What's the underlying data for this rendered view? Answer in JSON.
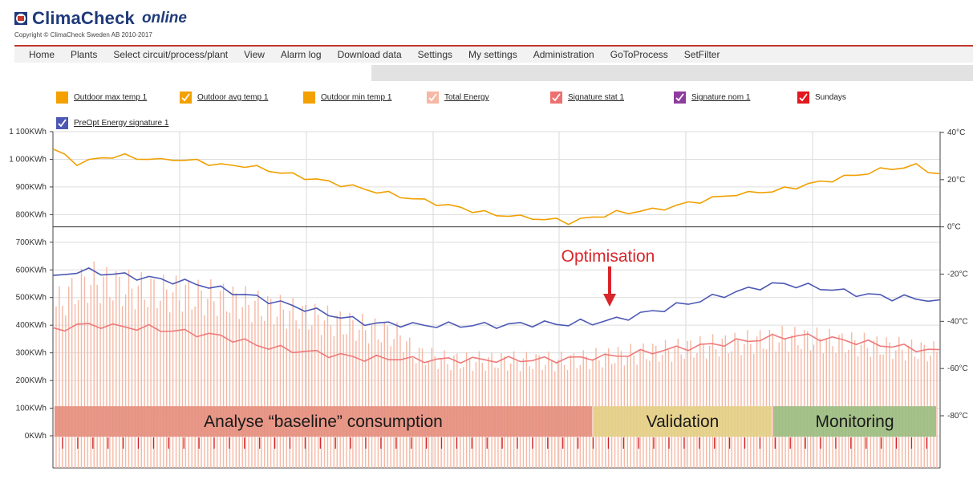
{
  "header": {
    "logo_name": "ClimaCheck",
    "logo_suffix": "online",
    "copyright": "Copyright © ClimaCheck Sweden AB 2010-2017"
  },
  "nav": {
    "items": [
      "Home",
      "Plants",
      "Select circuit/process/plant",
      "View",
      "Alarm log",
      "Download data",
      "Settings",
      "My settings",
      "Administration",
      "GoToProcess",
      "SetFilter"
    ]
  },
  "legend": {
    "items": [
      {
        "label": "Outdoor max temp 1",
        "color": "#f4a100",
        "checked": false
      },
      {
        "label": "Outdoor avg temp 1",
        "color": "#f4a100",
        "checked": true
      },
      {
        "label": "Outdoor min temp 1",
        "color": "#f4a100",
        "checked": false
      },
      {
        "label": "Total Energy",
        "color": "#f5b8a4",
        "checked": true
      },
      {
        "label": "Signature stat 1",
        "color": "#ee6f6f",
        "checked": true
      },
      {
        "label": "Signature nom 1",
        "color": "#8e3c9e",
        "checked": true
      },
      {
        "label": "Sundays",
        "color": "#e3171d",
        "checked": true
      },
      {
        "label": "PreOpt Energy signature 1",
        "color": "#4c58b4",
        "checked": true
      }
    ]
  },
  "chart_data": {
    "type": "line",
    "left_axis_ticks": [
      "1 100KWh",
      "1 000KWh",
      "900KWh",
      "800KWh",
      "700KWh",
      "600KWh",
      "500KWh",
      "400KWh",
      "300KWh",
      "200KWh",
      "100KWh",
      "0KWh"
    ],
    "left_axis_values": [
      1100,
      1000,
      900,
      800,
      700,
      600,
      500,
      400,
      300,
      200,
      100,
      0
    ],
    "right_axis_ticks": [
      "40°C",
      "20°C",
      "0°C",
      "-20°C",
      "-40°C",
      "-60°C",
      "-80°C"
    ],
    "right_axis_values": [
      40,
      20,
      0,
      -20,
      -40,
      -60,
      -80
    ],
    "series": [
      {
        "name": "Outdoor avg temp 1",
        "axis": "right",
        "color": "#f0a000",
        "values": [
          33,
          30,
          27,
          28,
          29,
          30,
          30,
          29,
          29,
          28,
          29,
          28,
          28,
          27,
          26,
          26,
          26,
          25,
          24,
          23,
          22,
          21,
          20,
          19,
          18,
          17,
          16,
          15,
          14,
          13,
          12,
          11,
          10,
          9,
          8,
          7,
          6,
          5,
          5,
          4,
          4,
          3,
          3,
          2,
          3,
          4,
          5,
          6,
          6,
          7,
          7,
          8,
          9,
          10,
          11,
          12,
          13,
          14,
          14,
          15,
          15,
          16,
          17,
          18,
          19,
          20,
          21,
          22,
          23,
          24,
          25,
          25,
          26,
          24,
          22
        ]
      },
      {
        "name": "PreOpt Energy signature 1",
        "axis": "left",
        "color": "#4c58b4",
        "values": [
          570,
          585,
          595,
          595,
          590,
          585,
          580,
          575,
          570,
          565,
          560,
          555,
          550,
          540,
          530,
          520,
          510,
          500,
          490,
          480,
          470,
          460,
          450,
          440,
          430,
          420,
          410,
          405,
          405,
          405,
          400,
          400,
          400,
          400,
          400,
          400,
          400,
          400,
          400,
          405,
          405,
          405,
          405,
          405,
          410,
          410,
          415,
          420,
          430,
          440,
          450,
          460,
          470,
          480,
          490,
          500,
          510,
          520,
          530,
          540,
          545,
          550,
          545,
          540,
          535,
          530,
          520,
          515,
          510,
          505,
          500,
          500,
          495,
          495,
          480
        ]
      },
      {
        "name": "Signature stat 1",
        "axis": "left",
        "color": "#ee7a7a",
        "values": [
          380,
          390,
          400,
          400,
          400,
          395,
          395,
          390,
          390,
          385,
          380,
          375,
          370,
          365,
          360,
          350,
          340,
          330,
          320,
          315,
          310,
          305,
          300,
          295,
          290,
          285,
          280,
          280,
          280,
          280,
          275,
          275,
          275,
          275,
          275,
          275,
          275,
          275,
          275,
          275,
          275,
          275,
          275,
          280,
          280,
          285,
          285,
          290,
          295,
          300,
          305,
          310,
          315,
          320,
          325,
          330,
          335,
          340,
          345,
          350,
          355,
          360,
          360,
          360,
          355,
          350,
          345,
          340,
          335,
          330,
          325,
          320,
          315,
          310,
          305
        ]
      }
    ],
    "bars": {
      "name": "Total Energy",
      "axis": "left",
      "color": "#f5b8a4",
      "values": [
        520,
        560,
        600,
        620,
        610,
        600,
        590,
        585,
        580,
        575,
        570,
        565,
        560,
        555,
        550,
        540,
        530,
        520,
        510,
        500,
        490,
        480,
        470,
        460,
        450,
        440,
        430,
        420,
        410,
        400,
        330,
        320,
        310,
        300,
        300,
        300,
        300,
        300,
        300,
        300,
        300,
        300,
        300,
        300,
        305,
        310,
        315,
        320,
        325,
        330,
        335,
        340,
        345,
        350,
        355,
        360,
        365,
        370,
        375,
        380,
        385,
        390,
        390,
        390,
        385,
        380,
        375,
        370,
        365,
        360,
        355,
        350,
        345,
        340,
        335
      ]
    },
    "phases": [
      {
        "label": "Analyse “baseline” consumption",
        "color": "#e58f7f"
      },
      {
        "label": "Validation",
        "color": "#e3cf86"
      },
      {
        "label": "Monitoring",
        "color": "#9cbd81"
      }
    ],
    "annotation": {
      "text": "Optimisation",
      "color": "#d9262b"
    }
  }
}
